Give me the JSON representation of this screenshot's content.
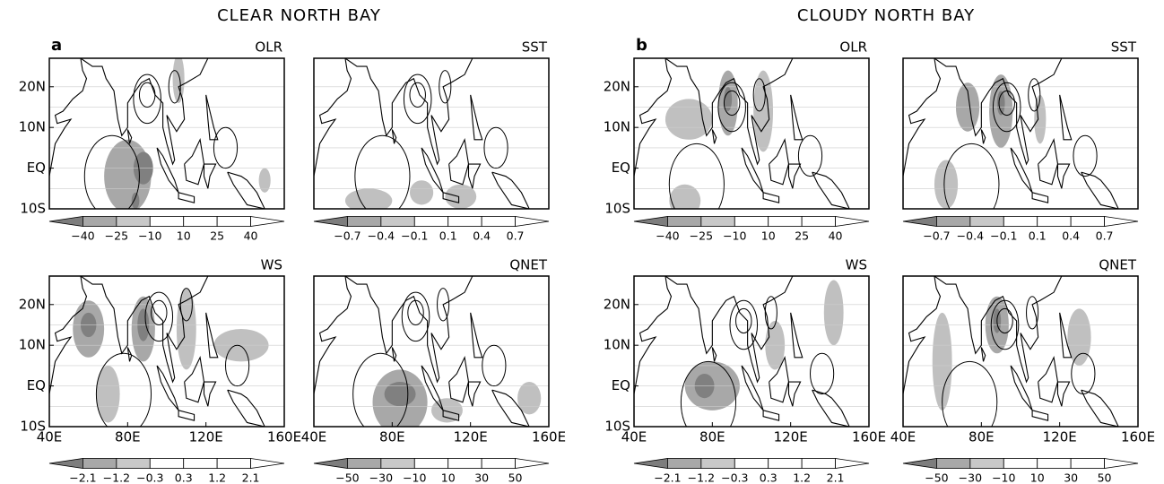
{
  "figures": [
    {
      "title": "CLEAR NORTH BAY",
      "letter": "a",
      "panels": [
        {
          "label": "OLR",
          "colorbar": [
            "−40",
            "−25",
            "−10",
            "10",
            "25",
            "40"
          ]
        },
        {
          "label": "SST",
          "colorbar": [
            "−0.7",
            "−0.4",
            "−0.1",
            "0.1",
            "0.4",
            "0.7"
          ]
        },
        {
          "label": "WS",
          "colorbar": [
            "−2.1",
            "−1.2",
            "−0.3",
            "0.3",
            "1.2",
            "2.1"
          ]
        },
        {
          "label": "QNET",
          "colorbar": [
            "−50",
            "−30",
            "−10",
            "10",
            "30",
            "50"
          ]
        }
      ]
    },
    {
      "title": "CLOUDY NORTH BAY",
      "letter": "b",
      "panels": [
        {
          "label": "OLR",
          "colorbar": [
            "−40",
            "−25",
            "−10",
            "10",
            "25",
            "40"
          ]
        },
        {
          "label": "SST",
          "colorbar": [
            "−0.7",
            "−0.4",
            "−0.1",
            "0.1",
            "0.4",
            "0.7"
          ]
        },
        {
          "label": "WS",
          "colorbar": [
            "−2.1",
            "−1.2",
            "−0.3",
            "0.3",
            "1.2",
            "2.1"
          ]
        },
        {
          "label": "QNET",
          "colorbar": [
            "−50",
            "−30",
            "−10",
            "10",
            "30",
            "50"
          ]
        }
      ]
    }
  ],
  "lat_labels": [
    "20N",
    "10N",
    "EQ",
    "10S"
  ],
  "lon_labels": [
    "40E",
    "80E",
    "120E",
    "160E"
  ]
}
